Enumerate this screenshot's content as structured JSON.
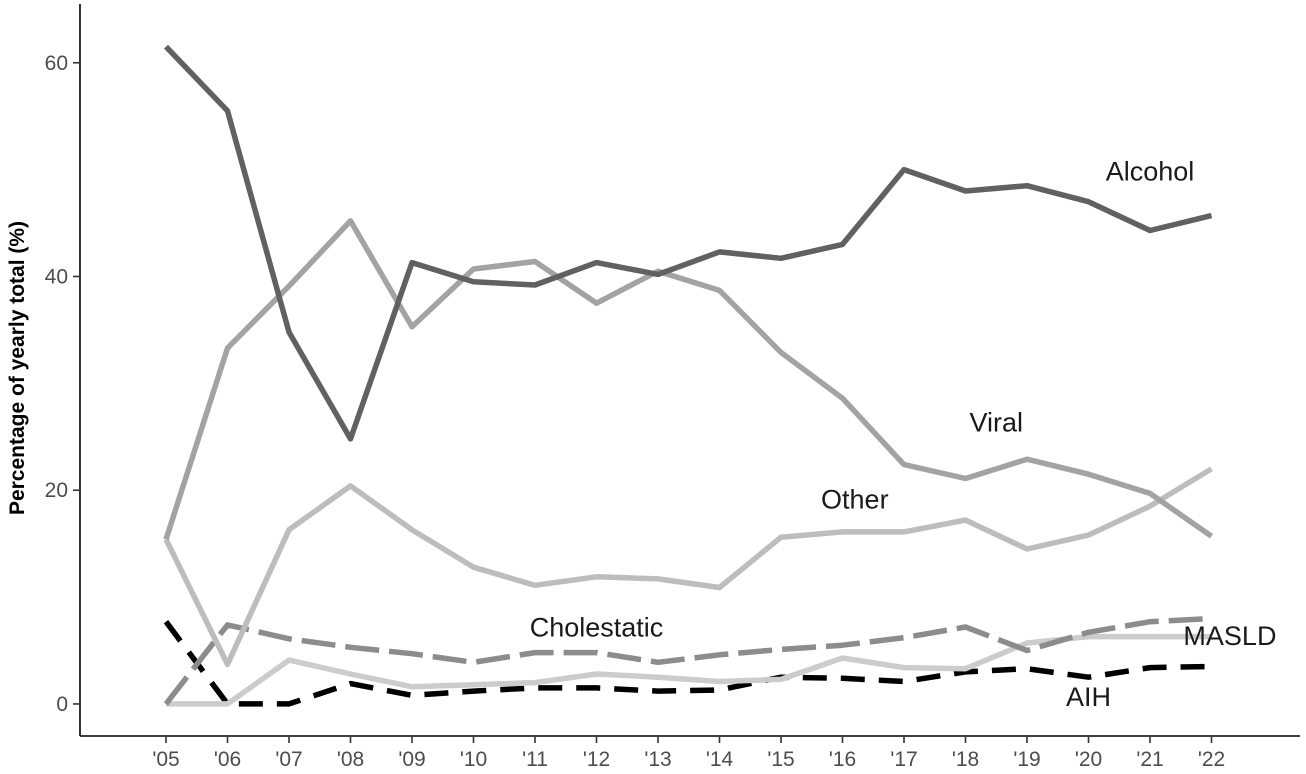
{
  "chart_data": {
    "type": "line",
    "title": "",
    "xlabel": "",
    "ylabel": "Percentage of yearly total (%)",
    "categories": [
      "'05",
      "'06",
      "'07",
      "'08",
      "'09",
      "'10",
      "'11",
      "'12",
      "'13",
      "'14",
      "'15",
      "'16",
      "'17",
      "'18",
      "'19",
      "'20",
      "'21",
      "'22"
    ],
    "ylim": [
      -3,
      65.5
    ],
    "yticks": [
      0,
      20,
      40,
      60
    ],
    "grid": false,
    "legend": "none",
    "series": [
      {
        "name": "Alcohol",
        "color": "#616161",
        "dash": "solid",
        "values": [
          61.5,
          55.5,
          34.8,
          24.8,
          41.3,
          39.5,
          39.2,
          41.3,
          40.2,
          42.3,
          41.7,
          43.0,
          50.0,
          48.0,
          48.5,
          47.0,
          44.3,
          45.7
        ]
      },
      {
        "name": "Viral",
        "color": "#a3a3a3",
        "dash": "solid",
        "values": [
          15.4,
          33.3,
          39.1,
          45.2,
          35.3,
          40.7,
          41.4,
          37.5,
          40.5,
          38.7,
          32.9,
          28.6,
          22.4,
          21.1,
          22.9,
          21.5,
          19.7,
          15.7
        ]
      },
      {
        "name": "Other",
        "color": "#bdbdbd",
        "dash": "solid",
        "values": [
          15.4,
          3.7,
          16.3,
          20.4,
          16.3,
          12.8,
          11.1,
          11.9,
          11.7,
          10.9,
          15.6,
          16.1,
          16.1,
          17.2,
          14.5,
          15.8,
          18.5,
          22.0
        ]
      },
      {
        "name": "Cholestatic",
        "color": "#8c8c8c",
        "dash": "longdash",
        "values": [
          0.0,
          7.4,
          6.1,
          5.3,
          4.7,
          3.9,
          4.8,
          4.8,
          3.9,
          4.6,
          5.1,
          5.5,
          6.2,
          7.2,
          5.0,
          6.7,
          7.7,
          8.0
        ]
      },
      {
        "name": "MASLD",
        "color": "#cccccc",
        "dash": "solid",
        "values": [
          0.0,
          0.0,
          4.1,
          2.8,
          1.6,
          1.8,
          2.0,
          2.8,
          2.5,
          2.1,
          2.3,
          4.3,
          3.4,
          3.3,
          5.7,
          6.3,
          6.3,
          6.3
        ]
      },
      {
        "name": "AIH",
        "color": "#000000",
        "dash": "dashed",
        "values": [
          7.7,
          0.0,
          0.0,
          1.9,
          0.8,
          1.2,
          1.5,
          1.5,
          1.2,
          1.3,
          2.5,
          2.4,
          2.1,
          3.0,
          3.3,
          2.5,
          3.4,
          3.5
        ]
      }
    ],
    "annotations": [
      {
        "series": "Alcohol",
        "text": "Alcohol",
        "at_x": 16.0,
        "at_y": 49.0
      },
      {
        "series": "Viral",
        "text": "Viral",
        "at_x": 13.5,
        "at_y": 25.5
      },
      {
        "series": "Other",
        "text": "Other",
        "at_x": 11.2,
        "at_y": 18.3
      },
      {
        "series": "Cholestatic",
        "text": "Cholestatic",
        "at_x": 7.0,
        "at_y": 6.3
      },
      {
        "series": "MASLD",
        "text": "MASLD",
        "at_x": 17.3,
        "at_y": 5.5
      },
      {
        "series": "AIH",
        "text": "AIH",
        "at_x": 15.0,
        "at_y": -0.2
      }
    ]
  }
}
